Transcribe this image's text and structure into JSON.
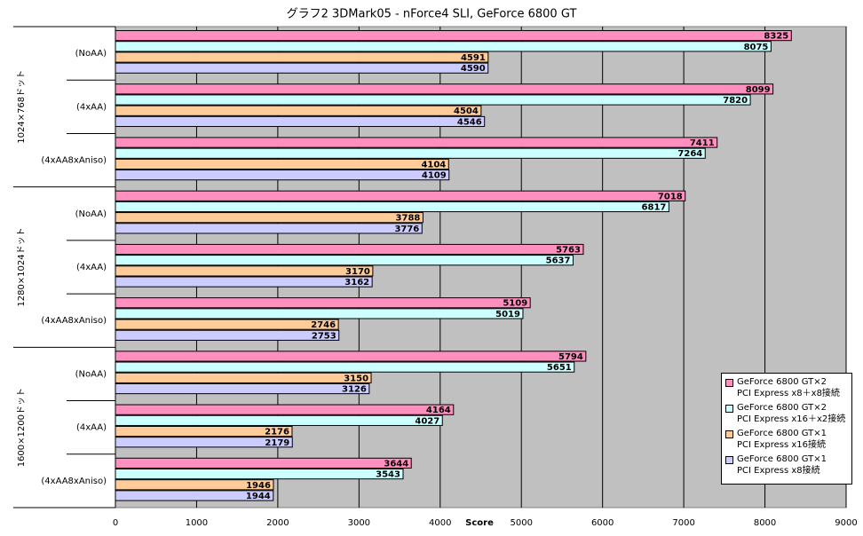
{
  "chart_data": {
    "type": "hbar",
    "title": "グラフ2  3DMark05 - nForce4 SLI, GeForce 6800 GT",
    "x_label": "Score",
    "groups": [
      "1024×768ドット",
      "1280×1024ドット",
      "1600×1200ドット"
    ],
    "categories": [
      "(NoAA)",
      "(4xAA)",
      "(4xAA8xAniso)",
      "(NoAA)",
      "(4xAA)",
      "(4xAA8xAniso)",
      "(NoAA)",
      "(4xAA)",
      "(4xAA8xAniso)"
    ],
    "series": [
      {
        "name": "GeForce 6800 GT×2\nPCI Express x8＋x8接続",
        "color": "#ff8fbf",
        "values": [
          8325,
          8099,
          7411,
          7018,
          5763,
          5109,
          5794,
          4164,
          3644
        ]
      },
      {
        "name": "GeForce 6800 GT×2\nPCI Express x16＋x2接続",
        "color": "#ccffff",
        "values": [
          8075,
          7820,
          7264,
          6817,
          5637,
          5019,
          5651,
          4027,
          3543
        ]
      },
      {
        "name": "GeForce 6800 GT×1\nPCI Express x16接続",
        "color": "#ffcc99",
        "values": [
          4591,
          4504,
          4104,
          3788,
          3170,
          2746,
          3150,
          2176,
          1946
        ]
      },
      {
        "name": "GeForce 6800 GT×1\nPCI Express x8接続",
        "color": "#ccccff",
        "values": [
          4590,
          4546,
          4109,
          3776,
          3162,
          2753,
          3126,
          2179,
          1944
        ]
      }
    ],
    "xlim": [
      0,
      9000
    ],
    "xticks": [
      0,
      1000,
      2000,
      3000,
      4000,
      5000,
      6000,
      7000,
      8000,
      9000
    ],
    "grid": true
  }
}
